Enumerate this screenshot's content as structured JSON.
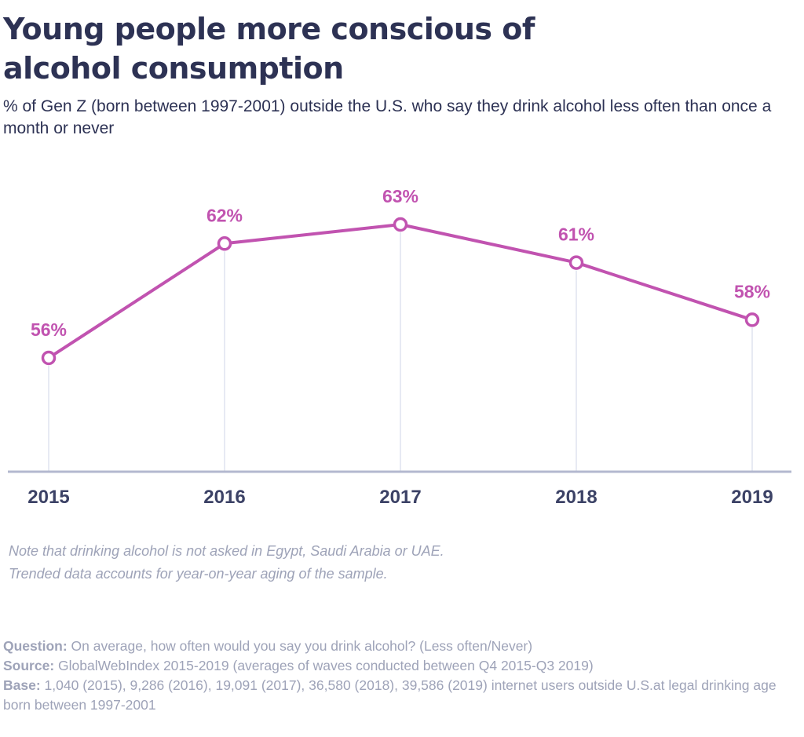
{
  "title": "Young people more conscious of alcohol consumption",
  "subtitle": "% of Gen Z  (born between 1997-2001) outside the U.S. who say they drink alcohol less often than once a month or never",
  "chart_data": {
    "type": "line",
    "categories": [
      "2015",
      "2016",
      "2017",
      "2018",
      "2019"
    ],
    "values": [
      56,
      62,
      63,
      61,
      58
    ],
    "data_labels": [
      "56%",
      "62%",
      "63%",
      "61%",
      "58%"
    ],
    "title": "Young people more conscious of alcohol consumption",
    "xlabel": "",
    "ylabel": "",
    "ylim": [
      50,
      66
    ],
    "grid": "vertical",
    "legend": "none",
    "colors": {
      "line": "#c153b0",
      "label": "#c153b0",
      "gridline": "#dfe3ef",
      "axis": "#b3b8cf",
      "tick": "#3c4266"
    }
  },
  "notes": {
    "line1": "Note that drinking alcohol is not asked in Egypt, Saudi Arabia or UAE.",
    "line2": "Trended data accounts for year-on-year aging of the sample."
  },
  "footer": {
    "question_label": "Question:",
    "question_text": " On average, how often would you say you drink alcohol? (Less often/Never)",
    "source_label": "Source:",
    "source_text": " GlobalWebIndex 2015-2019 (averages of waves conducted between Q4 2015-Q3 2019)",
    "base_label": "Base:",
    "base_text": " 1,040 (2015), 9,286 (2016), 19,091 (2017), 36,580 (2018), 39,586 (2019) internet users outside U.S.at legal drinking age born between 1997-2001"
  }
}
